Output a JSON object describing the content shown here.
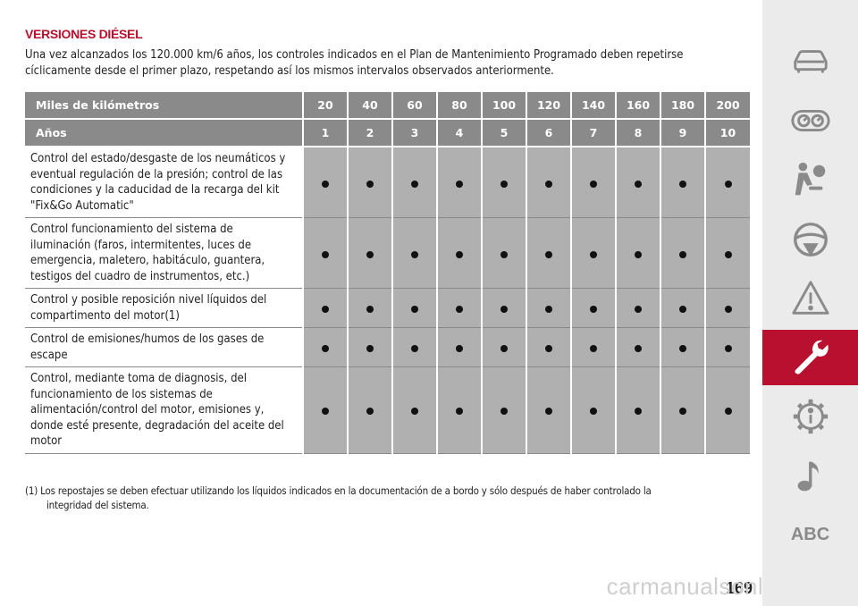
{
  "section": {
    "title": "VERSIONES DIÉSEL",
    "intro": "Una vez alcanzados los 120.000 km/6 años, los controles indicados en el Plan de Mantenimiento Programado deben repetirse cíclicamente desde el primer plazo, respetando así los mismos intervalos observados anteriormente."
  },
  "table": {
    "km_label": "Miles de kilómetros",
    "km": [
      "20",
      "40",
      "60",
      "80",
      "100",
      "120",
      "140",
      "160",
      "180",
      "200"
    ],
    "years_label": "Años",
    "years": [
      "1",
      "2",
      "3",
      "4",
      "5",
      "6",
      "7",
      "8",
      "9",
      "10"
    ],
    "rows": [
      {
        "task": "Control del estado/desgaste de los neumáticos y eventual regulación de la presión; control de las condiciones y la caducidad de la recarga del kit \"Fix&Go Automatic\"",
        "marks": [
          true,
          true,
          true,
          true,
          true,
          true,
          true,
          true,
          true,
          true
        ]
      },
      {
        "task": "Control funcionamiento del sistema de iluminación (faros, intermitentes, luces de emergencia, maletero, habitáculo, guantera, testigos del cuadro de instrumentos, etc.)",
        "marks": [
          true,
          true,
          true,
          true,
          true,
          true,
          true,
          true,
          true,
          true
        ]
      },
      {
        "task": "Control y posible reposición nivel líquidos del compartimento del motor(1)",
        "marks": [
          true,
          true,
          true,
          true,
          true,
          true,
          true,
          true,
          true,
          true
        ]
      },
      {
        "task": "Control de emisiones/humos de los gases de escape",
        "marks": [
          true,
          true,
          true,
          true,
          true,
          true,
          true,
          true,
          true,
          true
        ]
      },
      {
        "task": "Control, mediante toma de diagnosis, del funcionamiento de los sistemas de alimentación/control del motor, emisiones y, donde esté presente, degradación del aceite del motor",
        "marks": [
          true,
          true,
          true,
          true,
          true,
          true,
          true,
          true,
          true,
          true
        ]
      }
    ]
  },
  "footnote": {
    "line1": "(1) Los repostajes se deben efectuar utilizando los líquidos indicados en la documentación de a bordo y sólo después de haber controlado la",
    "line2": "integridad del sistema."
  },
  "page_number": "169",
  "watermark": "carmanualsonline.info",
  "sidebar": {
    "items": [
      {
        "icon": "car-icon"
      },
      {
        "icon": "dashboard-icon"
      },
      {
        "icon": "airbag-icon"
      },
      {
        "icon": "steering-wheel-icon"
      },
      {
        "icon": "warning-icon"
      },
      {
        "icon": "wrench-icon",
        "active": true
      },
      {
        "icon": "info-gear-icon"
      },
      {
        "icon": "music-icon"
      },
      {
        "label": "ABC"
      }
    ],
    "active_color": "#b8102e",
    "icon_color": "#8a8a8a"
  }
}
